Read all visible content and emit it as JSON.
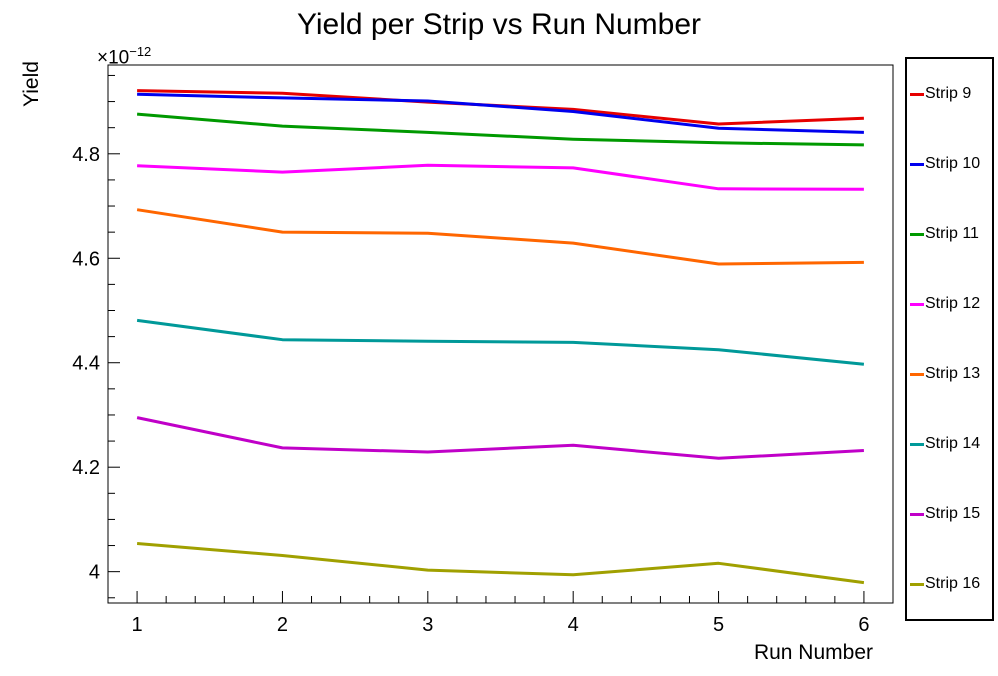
{
  "page": {
    "background": "#ffffff",
    "frame_color": "#000000",
    "text_color": "#000000"
  },
  "chart_data": {
    "type": "line",
    "title": "Yield per Strip vs Run Number",
    "xlabel": "Run Number",
    "ylabel": "Yield",
    "y_scale_exponent": {
      "prefix": "×10",
      "sup": "−12"
    },
    "x": [
      1,
      2,
      3,
      4,
      5,
      6
    ],
    "series": [
      {
        "name": "Strip 9",
        "color": "#e60000",
        "values": [
          4.921,
          4.916,
          4.899,
          4.885,
          4.857,
          4.868
        ]
      },
      {
        "name": "Strip 10",
        "color": "#0000ee",
        "values": [
          4.914,
          4.907,
          4.901,
          4.881,
          4.849,
          4.841
        ]
      },
      {
        "name": "Strip 11",
        "color": "#009900",
        "values": [
          4.876,
          4.853,
          4.841,
          4.828,
          4.821,
          4.817
        ]
      },
      {
        "name": "Strip 12",
        "color": "#ff00ff",
        "values": [
          4.777,
          4.765,
          4.778,
          4.773,
          4.733,
          4.732
        ]
      },
      {
        "name": "Strip 13",
        "color": "#ff6600",
        "values": [
          4.693,
          4.65,
          4.648,
          4.629,
          4.589,
          4.592
        ]
      },
      {
        "name": "Strip 14",
        "color": "#009999",
        "values": [
          4.481,
          4.444,
          4.441,
          4.439,
          4.425,
          4.397
        ]
      },
      {
        "name": "Strip 15",
        "color": "#c000c8",
        "values": [
          4.295,
          4.237,
          4.229,
          4.242,
          4.217,
          4.232
        ]
      },
      {
        "name": "Strip 16",
        "color": "#a0a000",
        "values": [
          4.054,
          4.031,
          4.003,
          3.994,
          4.016,
          3.979
        ]
      }
    ],
    "xlim": [
      0.8,
      6.2
    ],
    "ylim": [
      3.94,
      4.97
    ],
    "x_major_ticks": [
      1,
      2,
      3,
      4,
      5,
      6
    ],
    "x_tick_labels": [
      "1",
      "2",
      "3",
      "4",
      "5",
      "6"
    ],
    "x_minor_step": 0.2,
    "y_major_ticks": [
      4.0,
      4.2,
      4.4,
      4.6,
      4.8
    ],
    "y_tick_labels": [
      "4",
      "4.2",
      "4.4",
      "4.6",
      "4.8"
    ],
    "y_minor_step": 0.05,
    "grid": false,
    "legend_position": "right"
  }
}
